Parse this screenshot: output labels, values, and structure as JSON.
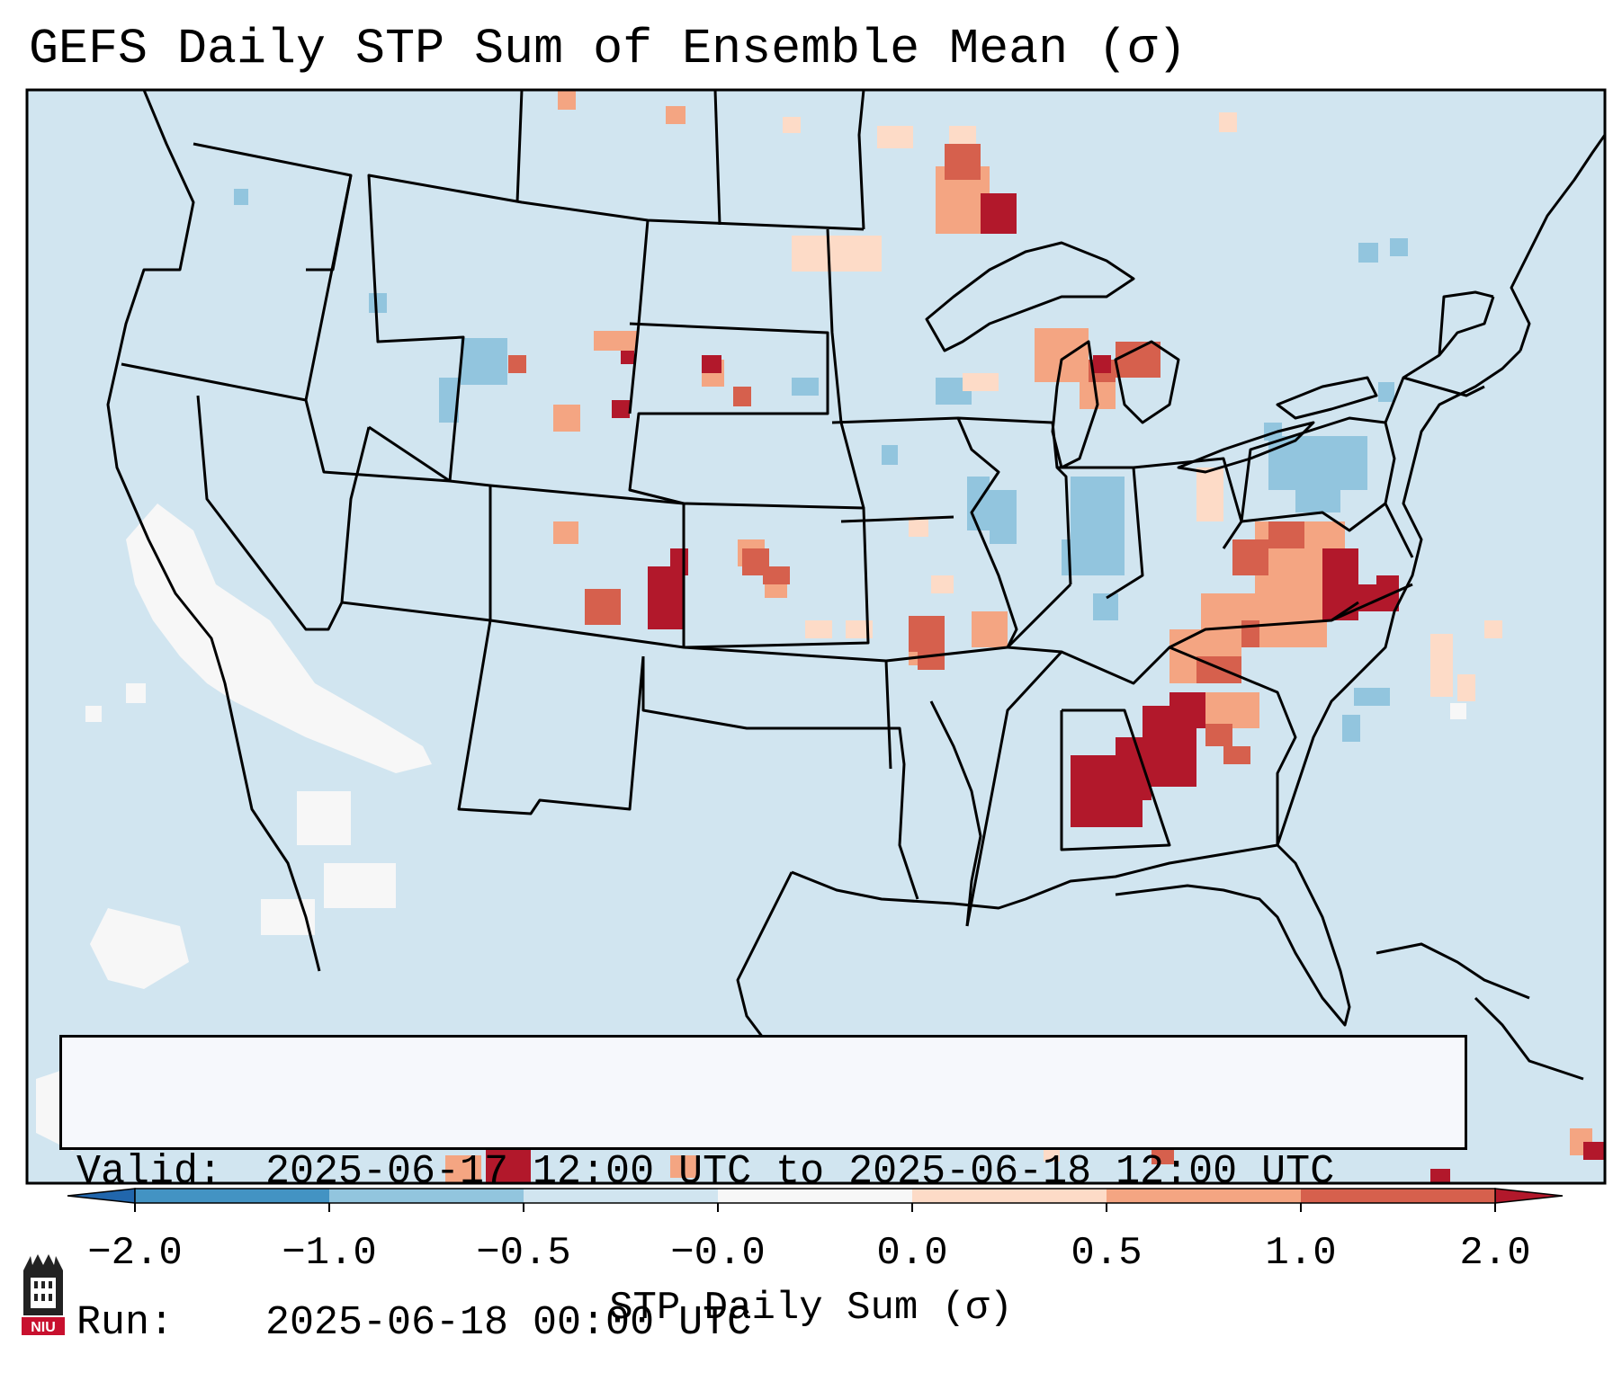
{
  "title": "GEFS Daily STP Sum of Ensemble Mean (σ)",
  "info": {
    "valid_label": "Valid:",
    "valid_value": "2025-06-17 12:00 UTC to 2025-06-18 12:00 UTC",
    "run_label": "Run:",
    "run_value": "2025-06-18 00:00 UTC"
  },
  "logo_text": "NIU",
  "chart_data": {
    "type": "heatmap",
    "title": "GEFS Daily STP Sum of Ensemble Mean (σ)",
    "region": "Continental United States",
    "colorbar": {
      "label": "STP Daily Sum (σ)",
      "ticks": [
        "−2.0",
        "−1.0",
        "−0.5",
        "−0.0",
        "0.0",
        "0.5",
        "1.0",
        "2.0"
      ],
      "bins": [
        {
          "range": "< -2.0",
          "color": "#2166ac"
        },
        {
          "range": "-2.0 to -1.0",
          "color": "#4393c3"
        },
        {
          "range": "-1.0 to -0.5",
          "color": "#92c5de"
        },
        {
          "range": "-0.5 to -0.0",
          "color": "#d1e5f0"
        },
        {
          "range": "-0.0 to 0.0",
          "color": "#f7f7f7"
        },
        {
          "range": "0.0 to 0.5",
          "color": "#fddbc7"
        },
        {
          "range": "0.5 to 1.0",
          "color": "#f4a582"
        },
        {
          "range": "1.0 to 2.0",
          "color": "#d6604d"
        },
        {
          "range": "> 2.0",
          "color": "#b2182b"
        }
      ]
    },
    "background_color": "#d1e5f0",
    "highlights": [
      {
        "area": "Alabama / Georgia",
        "level": "> 2.0"
      },
      {
        "area": "Virginia / Maryland",
        "level": "> 2.0"
      },
      {
        "area": "Tennessee / Carolinas",
        "level": "0.5 to 2.0"
      },
      {
        "area": "Upper Michigan / Lake Superior",
        "level": "1.0 to 2.0"
      },
      {
        "area": "Lower Michigan",
        "level": "0.5 to 2.0"
      },
      {
        "area": "Colorado / Kansas",
        "level": "1.0 to 2.0"
      },
      {
        "area": "Missouri",
        "level": "0.5 to 1.0"
      },
      {
        "area": "Pennsylvania",
        "level": "-1.0 to -0.5"
      },
      {
        "area": "Indiana / Illinois",
        "level": "-1.0 to -0.5"
      },
      {
        "area": "Southwest / Pacific",
        "level": "-0.0 to 0.0"
      }
    ]
  }
}
